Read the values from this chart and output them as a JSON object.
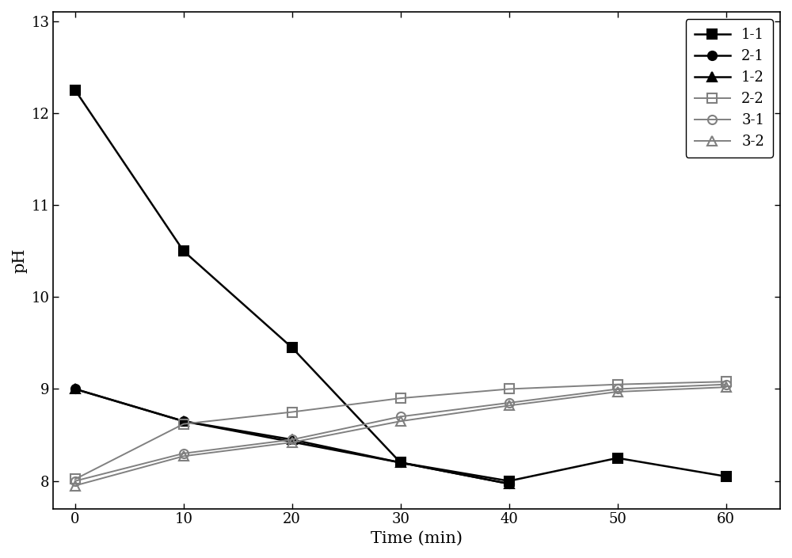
{
  "series": {
    "1-1": {
      "x": [
        0,
        10,
        20,
        30,
        40,
        50,
        60
      ],
      "y": [
        12.25,
        10.5,
        9.45,
        8.2,
        8.0,
        8.25,
        8.05
      ],
      "color": "#000000",
      "marker": "s",
      "fillstyle": "full",
      "linewidth": 1.8,
      "markersize": 8
    },
    "2-1": {
      "x": [
        0,
        10,
        30,
        40
      ],
      "y": [
        9.0,
        8.65,
        8.2,
        7.97
      ],
      "color": "#000000",
      "marker": "o",
      "fillstyle": "full",
      "linewidth": 1.8,
      "markersize": 8
    },
    "1-2": {
      "x": [
        0,
        10,
        20,
        30,
        40
      ],
      "y": [
        9.0,
        8.65,
        8.45,
        8.2,
        7.97
      ],
      "color": "#000000",
      "marker": "^",
      "fillstyle": "full",
      "linewidth": 1.8,
      "markersize": 8
    },
    "2-2": {
      "x": [
        0,
        10,
        20,
        30,
        40,
        50,
        60
      ],
      "y": [
        8.02,
        8.62,
        8.75,
        8.9,
        9.0,
        9.05,
        9.08
      ],
      "color": "#808080",
      "marker": "s",
      "fillstyle": "none",
      "linewidth": 1.4,
      "markersize": 8
    },
    "3-1": {
      "x": [
        0,
        10,
        20,
        30,
        40,
        50,
        60
      ],
      "y": [
        8.0,
        8.3,
        8.45,
        8.7,
        8.85,
        9.0,
        9.05
      ],
      "color": "#808080",
      "marker": "o",
      "fillstyle": "none",
      "linewidth": 1.4,
      "markersize": 8
    },
    "3-2": {
      "x": [
        0,
        10,
        20,
        30,
        40,
        50,
        60
      ],
      "y": [
        7.95,
        8.27,
        8.42,
        8.65,
        8.82,
        8.97,
        9.02
      ],
      "color": "#808080",
      "marker": "^",
      "fillstyle": "none",
      "linewidth": 1.4,
      "markersize": 8
    }
  },
  "xlabel": "Time (min)",
  "ylabel": "pH",
  "xlim": [
    -2,
    65
  ],
  "ylim": [
    7.7,
    13.1
  ],
  "xticks": [
    0,
    10,
    20,
    30,
    40,
    50,
    60
  ],
  "yticks": [
    8,
    9,
    10,
    11,
    12,
    13
  ],
  "legend_order": [
    "1-1",
    "2-1",
    "1-2",
    "2-2",
    "3-1",
    "3-2"
  ],
  "axis_fontsize": 15,
  "tick_fontsize": 13,
  "legend_fontsize": 13
}
